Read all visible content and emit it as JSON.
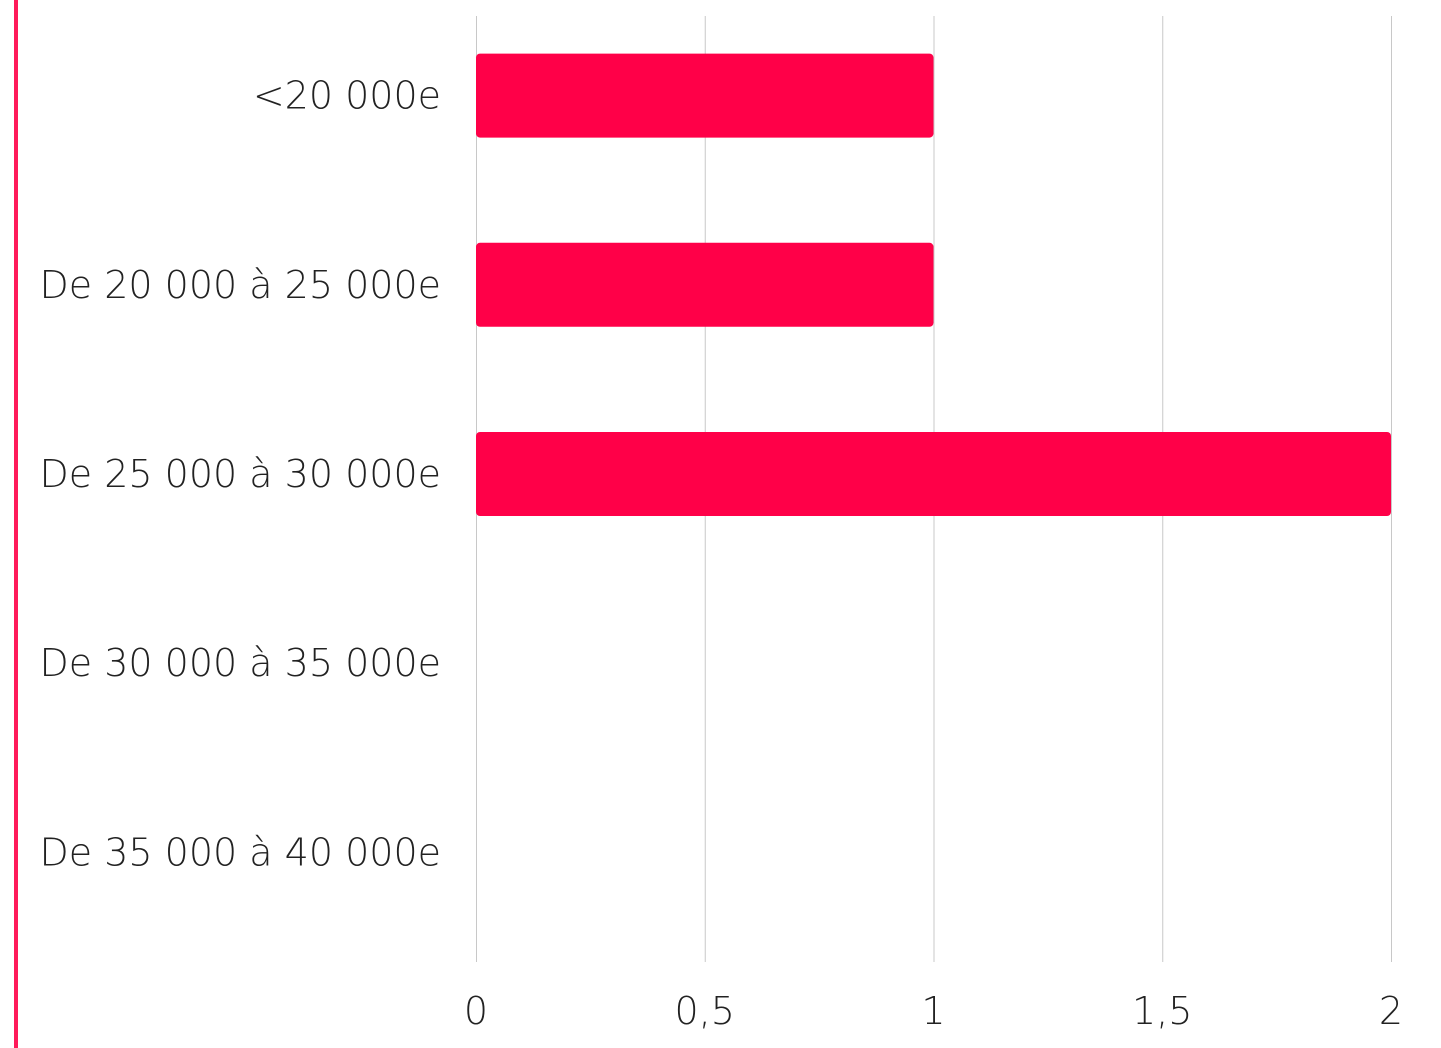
{
  "colors": {
    "bar": "#ff0048",
    "accent_border": "#ff1a5a",
    "gridline": "#c8c8c8"
  },
  "chart_data": {
    "type": "bar",
    "orientation": "horizontal",
    "categories": [
      "<20 000e",
      "De 20 000 à 25 000e",
      "De 25 000 à 30 000e",
      "De 30 000 à 35 000e",
      "De 35 000 à 40 000e"
    ],
    "values": [
      1,
      1,
      2,
      0,
      0
    ],
    "xlim": [
      0,
      2
    ],
    "xticks": [
      0,
      0.5,
      1,
      1.5,
      2
    ],
    "xtick_labels": [
      "0",
      "0,5",
      "1",
      "1,5",
      "2"
    ],
    "grid": "vertical",
    "legend": "none"
  }
}
